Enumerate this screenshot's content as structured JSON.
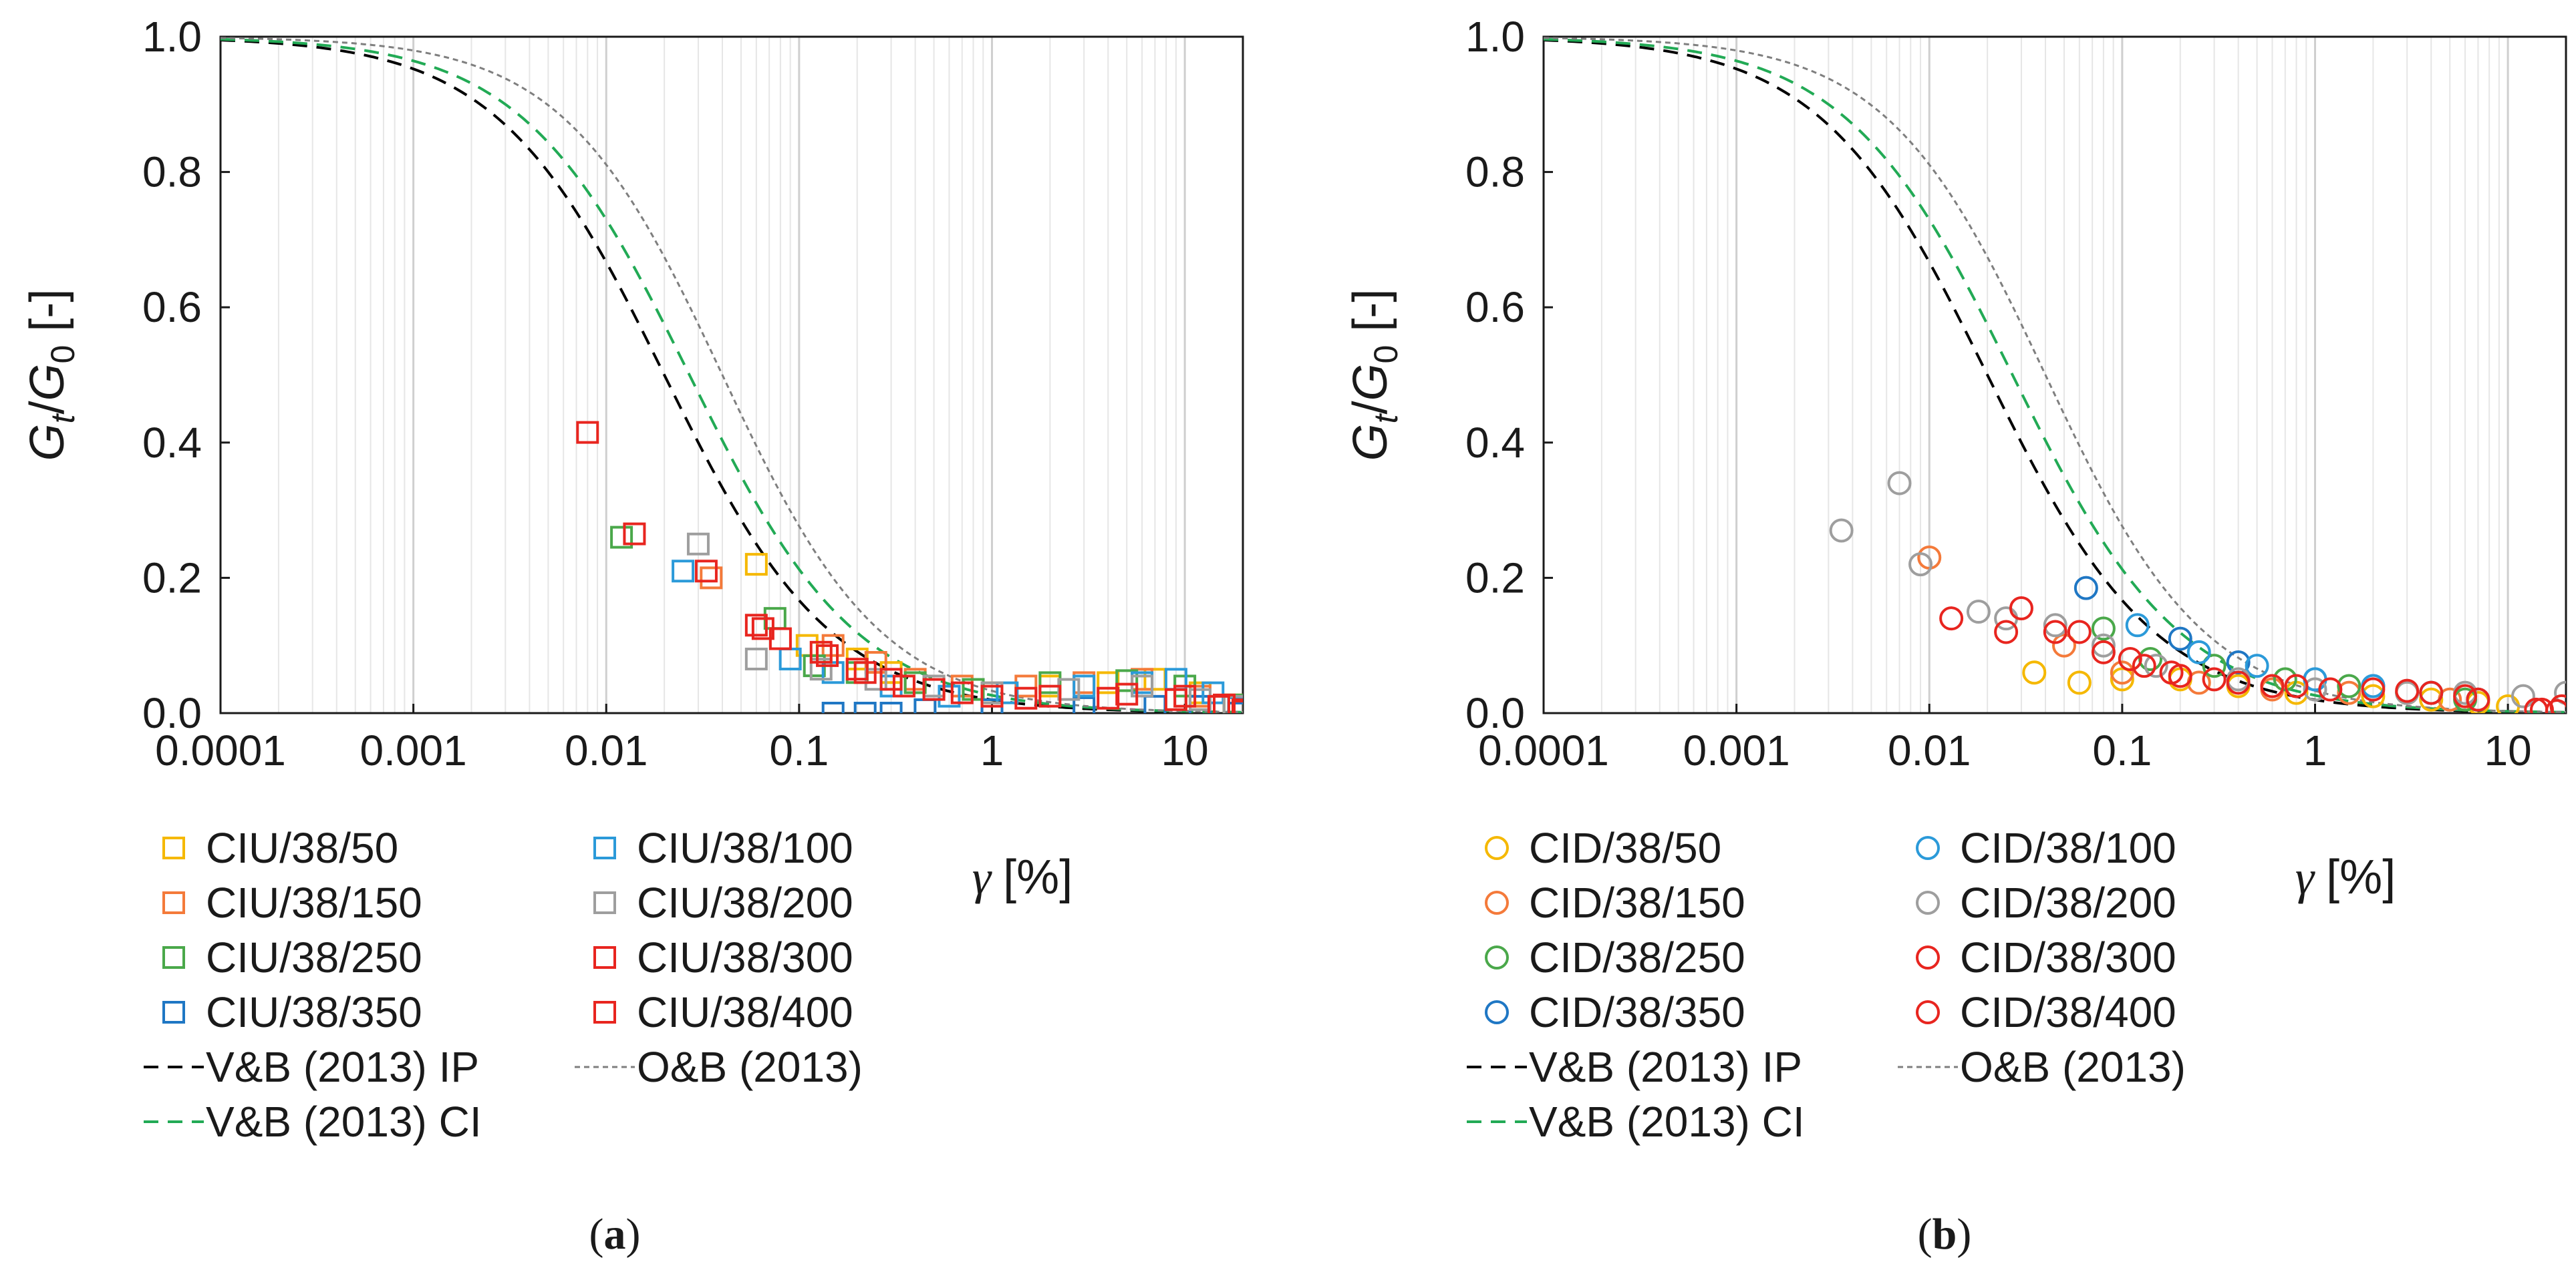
{
  "chart_data": [
    {
      "type": "scatter",
      "panel_label": "a",
      "xlabel_symbol": "γ",
      "xlabel_unit": "[%]",
      "ylabel": {
        "g": "G",
        "t": "t",
        "slash": "/",
        "g0": "G",
        "zero": "0",
        "unit": "[-]"
      },
      "x_scale": "log",
      "xlim": [
        0.0001,
        20
      ],
      "ylim": [
        0,
        1.0
      ],
      "x_ticks": [
        "0.0001",
        "0.001",
        "0.01",
        "0.1",
        "1",
        "10"
      ],
      "y_ticks": [
        "0.0",
        "0.2",
        "0.4",
        "0.6",
        "0.8",
        "1.0"
      ],
      "grid": "vertical log minor",
      "legend_position": "below-left",
      "marker": "square",
      "series": [
        {
          "name": "CIU/38/50",
          "color": "#f5b800",
          "points": [
            [
              0.06,
              0.22
            ],
            [
              0.11,
              0.1
            ],
            [
              0.2,
              0.08
            ],
            [
              0.3,
              0.06
            ],
            [
              0.5,
              0.04
            ],
            [
              1,
              0.03
            ],
            [
              2,
              0.04
            ],
            [
              4,
              0.045
            ],
            [
              7,
              0.05
            ],
            [
              12,
              0.03
            ],
            [
              18,
              0.012
            ]
          ]
        },
        {
          "name": "CIU/38/150",
          "color": "#f47a3a",
          "points": [
            [
              0.035,
              0.2
            ],
            [
              0.15,
              0.1
            ],
            [
              0.25,
              0.075
            ],
            [
              0.4,
              0.05
            ],
            [
              0.7,
              0.04
            ],
            [
              1.5,
              0.04
            ],
            [
              3,
              0.045
            ],
            [
              6,
              0.05
            ],
            [
              12,
              0.025
            ],
            [
              18,
              0.012
            ]
          ]
        },
        {
          "name": "CIU/38/250",
          "color": "#4aa84a",
          "points": [
            [
              0.012,
              0.26
            ],
            [
              0.075,
              0.14
            ],
            [
              0.12,
              0.07
            ],
            [
              0.2,
              0.06
            ],
            [
              0.4,
              0.045
            ],
            [
              0.8,
              0.035
            ],
            [
              2,
              0.045
            ],
            [
              5,
              0.048
            ],
            [
              10,
              0.04
            ],
            [
              18,
              0.012
            ]
          ]
        },
        {
          "name": "CIU/38/350",
          "color": "#1f77c4",
          "points": [
            [
              0.15,
              0.0
            ],
            [
              0.22,
              0.0
            ],
            [
              0.3,
              0.0
            ],
            [
              0.45,
              0.005
            ],
            [
              1,
              0.005
            ],
            [
              3,
              0.008
            ],
            [
              7,
              0.01
            ],
            [
              12,
              0.01
            ],
            [
              19,
              0.0
            ]
          ]
        },
        {
          "name": "CIU/38/100",
          "color": "#2b9ad9",
          "points": [
            [
              0.025,
              0.21
            ],
            [
              0.09,
              0.08
            ],
            [
              0.15,
              0.06
            ],
            [
              0.3,
              0.04
            ],
            [
              0.6,
              0.025
            ],
            [
              1.2,
              0.03
            ],
            [
              3,
              0.04
            ],
            [
              6,
              0.045
            ],
            [
              9,
              0.05
            ],
            [
              14,
              0.03
            ],
            [
              19,
              0.008
            ]
          ]
        },
        {
          "name": "CIU/38/200",
          "color": "#9e9e9e",
          "points": [
            [
              0.03,
              0.25
            ],
            [
              0.06,
              0.08
            ],
            [
              0.13,
              0.065
            ],
            [
              0.25,
              0.05
            ],
            [
              0.5,
              0.04
            ],
            [
              1,
              0.03
            ],
            [
              2.5,
              0.035
            ],
            [
              6,
              0.04
            ],
            [
              12,
              0.02
            ],
            [
              18,
              0.01
            ]
          ]
        },
        {
          "name": "CIU/38/300",
          "color": "#e8251f",
          "points": [
            [
              0.014,
              0.265
            ],
            [
              0.033,
              0.21
            ],
            [
              0.06,
              0.13
            ],
            [
              0.08,
              0.11
            ],
            [
              0.13,
              0.09
            ],
            [
              0.2,
              0.065
            ],
            [
              0.3,
              0.05
            ],
            [
              0.5,
              0.035
            ],
            [
              1,
              0.025
            ],
            [
              2,
              0.025
            ],
            [
              5,
              0.028
            ],
            [
              10,
              0.025
            ],
            [
              16,
              0.012
            ],
            [
              20,
              0.005
            ]
          ]
        },
        {
          "name": "CIU/38/400",
          "color": "#e8251f",
          "points": [
            [
              0.008,
              0.415
            ],
            [
              0.065,
              0.125
            ],
            [
              0.14,
              0.085
            ],
            [
              0.22,
              0.06
            ],
            [
              0.35,
              0.04
            ],
            [
              0.7,
              0.03
            ],
            [
              1.5,
              0.022
            ],
            [
              4,
              0.022
            ],
            [
              9,
              0.02
            ],
            [
              15,
              0.01
            ],
            [
              20,
              0.003
            ]
          ]
        }
      ],
      "curves": [
        {
          "name": "V&B (2013) IP",
          "color": "#000000",
          "style": "dashed",
          "x_ref": 0.02,
          "exponent": 1.0
        },
        {
          "name": "V&B (2013) CI",
          "color": "#22aa55",
          "style": "dashed",
          "x_ref": 0.027,
          "exponent": 1.0
        },
        {
          "name": "O&B (2013)",
          "color": "#7f7f7f",
          "style": "dotted",
          "x_ref": 0.04,
          "exponent": 1.05
        }
      ]
    },
    {
      "type": "scatter",
      "panel_label": "b",
      "xlabel_symbol": "γ",
      "xlabel_unit": "[%]",
      "ylabel": {
        "g": "G",
        "t": "t",
        "slash": "/",
        "g0": "G",
        "zero": "0",
        "unit": "[-]"
      },
      "x_scale": "log",
      "xlim": [
        0.0001,
        20
      ],
      "ylim": [
        0,
        1.0
      ],
      "x_ticks": [
        "0.0001",
        "0.001",
        "0.01",
        "0.1",
        "1",
        "10"
      ],
      "y_ticks": [
        "0.0",
        "0.2",
        "0.4",
        "0.6",
        "0.8",
        "1.0"
      ],
      "grid": "vertical log minor",
      "legend_position": "below-left",
      "marker": "circle",
      "series": [
        {
          "name": "CID/38/50",
          "color": "#f5b800",
          "points": [
            [
              0.035,
              0.06
            ],
            [
              0.06,
              0.045
            ],
            [
              0.1,
              0.05
            ],
            [
              0.2,
              0.05
            ],
            [
              0.4,
              0.04
            ],
            [
              0.8,
              0.03
            ],
            [
              2,
              0.025
            ],
            [
              4,
              0.02
            ],
            [
              7,
              0.015
            ],
            [
              10,
              0.01
            ]
          ]
        },
        {
          "name": "CID/38/150",
          "color": "#f47a3a",
          "points": [
            [
              0.01,
              0.23
            ],
            [
              0.05,
              0.1
            ],
            [
              0.1,
              0.06
            ],
            [
              0.25,
              0.045
            ],
            [
              0.6,
              0.035
            ],
            [
              1.5,
              0.03
            ],
            [
              3,
              0.03
            ],
            [
              5,
              0.02
            ]
          ]
        },
        {
          "name": "CID/38/250",
          "color": "#4aa84a",
          "points": [
            [
              0.08,
              0.125
            ],
            [
              0.14,
              0.08
            ],
            [
              0.3,
              0.07
            ],
            [
              0.7,
              0.05
            ],
            [
              1.5,
              0.04
            ],
            [
              3,
              0.03
            ],
            [
              6,
              0.02
            ]
          ]
        },
        {
          "name": "CID/38/350",
          "color": "#1f77c4",
          "points": [
            [
              0.065,
              0.185
            ],
            [
              0.2,
              0.11
            ],
            [
              0.4,
              0.075
            ],
            [
              1,
              0.05
            ],
            [
              2,
              0.04
            ],
            [
              4,
              0.03
            ]
          ]
        },
        {
          "name": "CID/38/100",
          "color": "#2b9ad9",
          "points": [
            [
              0.12,
              0.13
            ],
            [
              0.25,
              0.09
            ],
            [
              0.5,
              0.07
            ],
            [
              1,
              0.05
            ],
            [
              2,
              0.04
            ],
            [
              4,
              0.03
            ],
            [
              7,
              0.02
            ]
          ]
        },
        {
          "name": "CID/38/200",
          "color": "#9e9e9e",
          "points": [
            [
              0.0035,
              0.27
            ],
            [
              0.007,
              0.34
            ],
            [
              0.009,
              0.22
            ],
            [
              0.018,
              0.15
            ],
            [
              0.025,
              0.14
            ],
            [
              0.045,
              0.13
            ],
            [
              0.08,
              0.1
            ],
            [
              0.15,
              0.07
            ],
            [
              0.4,
              0.05
            ],
            [
              1,
              0.035
            ],
            [
              3,
              0.03
            ],
            [
              6,
              0.03
            ],
            [
              12,
              0.025
            ],
            [
              20,
              0.03
            ]
          ]
        },
        {
          "name": "CID/38/300",
          "color": "#e8251f",
          "points": [
            [
              0.013,
              0.14
            ],
            [
              0.025,
              0.12
            ],
            [
              0.045,
              0.12
            ],
            [
              0.08,
              0.09
            ],
            [
              0.13,
              0.07
            ],
            [
              0.2,
              0.055
            ],
            [
              0.4,
              0.045
            ],
            [
              0.8,
              0.04
            ],
            [
              2,
              0.035
            ],
            [
              4,
              0.03
            ],
            [
              7,
              0.02
            ],
            [
              15,
              0.005
            ],
            [
              19,
              0.01
            ]
          ]
        },
        {
          "name": "CID/38/400",
          "color": "#e8251f",
          "points": [
            [
              0.03,
              0.155
            ],
            [
              0.06,
              0.12
            ],
            [
              0.11,
              0.08
            ],
            [
              0.18,
              0.06
            ],
            [
              0.3,
              0.05
            ],
            [
              0.6,
              0.04
            ],
            [
              1.2,
              0.035
            ],
            [
              3,
              0.033
            ],
            [
              6,
              0.025
            ],
            [
              14,
              0.005
            ],
            [
              18,
              0.003
            ]
          ]
        }
      ],
      "curves": [
        {
          "name": "V&B (2013) IP",
          "color": "#000000",
          "style": "dashed",
          "x_ref": 0.02,
          "exponent": 1.0
        },
        {
          "name": "V&B (2013) CI",
          "color": "#22aa55",
          "style": "dashed",
          "x_ref": 0.027,
          "exponent": 1.0
        },
        {
          "name": "O&B (2013)",
          "color": "#7f7f7f",
          "style": "dotted",
          "x_ref": 0.04,
          "exponent": 1.05
        }
      ]
    }
  ]
}
